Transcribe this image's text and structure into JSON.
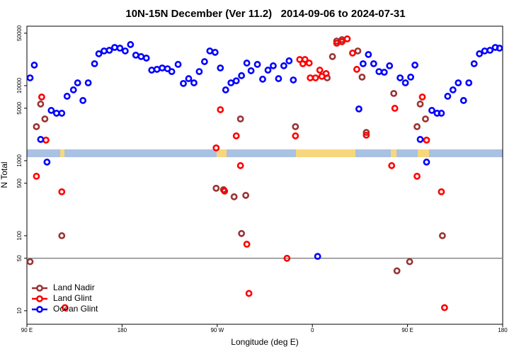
{
  "chart_data": {
    "type": "scatter",
    "title": "10N-15N December (Ver 11.2)   2014-09-06 to 2024-07-31",
    "x_label": "Longitude (deg E)",
    "y_label": "N Total",
    "log_scale": "y",
    "xlim": [
      90,
      540
    ],
    "xticks": [
      {
        "value": 90,
        "label": "90 E"
      },
      180,
      {
        "value": 270,
        "label": "90 W"
      },
      {
        "value": 360,
        "label": "0"
      },
      {
        "value": 450,
        "label": "90 E"
      },
      {
        "value": 540,
        "label": "180"
      }
    ],
    "ylim": [
      6.6,
      62000
    ],
    "yticks": [
      10,
      50,
      100,
      500,
      1000,
      5000,
      10000,
      50000
    ],
    "reference_line": 50,
    "legend": "bottom-left",
    "series": [
      {
        "name": "Land Nadir",
        "color": "#993333",
        "x": [
          93,
          99,
          103,
          107,
          123,
          269,
          276,
          286,
          292,
          293,
          297,
          344,
          374,
          379,
          383,
          388,
          403,
          407,
          411,
          437,
          440,
          452,
          459,
          462,
          467,
          483
        ],
        "values": [
          45,
          2840,
          5690,
          3600,
          100,
          429,
          411,
          330,
          3600,
          107,
          345,
          2840,
          12700,
          24400,
          39300,
          41000,
          29000,
          13000,
          2380,
          7870,
          34,
          45,
          2840,
          5690,
          3600,
          100
        ]
      },
      {
        "name": "Land Glint",
        "color": "#ff0000",
        "x": [
          99,
          104,
          108,
          123,
          126,
          269,
          273,
          277,
          288,
          292,
          298,
          300,
          336,
          344,
          348,
          351,
          353,
          357,
          358,
          363,
          367,
          369,
          373,
          383,
          388,
          393,
          398,
          402,
          411,
          435,
          438,
          459,
          464,
          468,
          482,
          485
        ],
        "values": [
          620,
          7060,
          1880,
          385,
          11,
          1480,
          4780,
          393,
          2140,
          859,
          77,
          17,
          50,
          2140,
          22300,
          19600,
          22300,
          20000,
          12700,
          12700,
          16100,
          13300,
          14500,
          36800,
          38500,
          42000,
          27200,
          16500,
          2190,
          859,
          4990,
          620,
          7060,
          1880,
          385,
          11
        ]
      },
      {
        "name": "Ocean Glint",
        "color": "#0000ff",
        "x": [
          93,
          97,
          103,
          109,
          113,
          118,
          123,
          128,
          134,
          138,
          143,
          148,
          154,
          158,
          163,
          168,
          173,
          178,
          183,
          188,
          193,
          198,
          203,
          208,
          213,
          218,
          223,
          227,
          233,
          238,
          243,
          248,
          253,
          258,
          263,
          268,
          273,
          278,
          283,
          288,
          293,
          298,
          302,
          308,
          313,
          318,
          323,
          328,
          333,
          338,
          342,
          365,
          404,
          408,
          413,
          418,
          423,
          428,
          433,
          443,
          448,
          453,
          457,
          462,
          468,
          473,
          478,
          482,
          488,
          493,
          498,
          503,
          508,
          513,
          518,
          523,
          528,
          533,
          537
        ],
        "values": [
          12700,
          18800,
          1920,
          958,
          4680,
          4290,
          4290,
          7220,
          8780,
          10900,
          6340,
          10900,
          19600,
          26600,
          29000,
          29600,
          32300,
          31600,
          29000,
          35300,
          25500,
          24400,
          23300,
          16100,
          16500,
          17200,
          16800,
          15400,
          19200,
          10700,
          12400,
          10900,
          15400,
          20900,
          29000,
          27800,
          17200,
          8780,
          10900,
          11600,
          13600,
          20000,
          15800,
          19200,
          12200,
          16100,
          18400,
          12400,
          18400,
          21400,
          11900,
          53,
          4890,
          19600,
          26000,
          19600,
          15400,
          15100,
          18400,
          12700,
          10900,
          13000,
          18800,
          1920,
          958,
          4680,
          4290,
          4290,
          7220,
          8780,
          10900,
          6340,
          10900,
          19600,
          26600,
          29000,
          29600,
          32300,
          31600
        ]
      }
    ]
  }
}
